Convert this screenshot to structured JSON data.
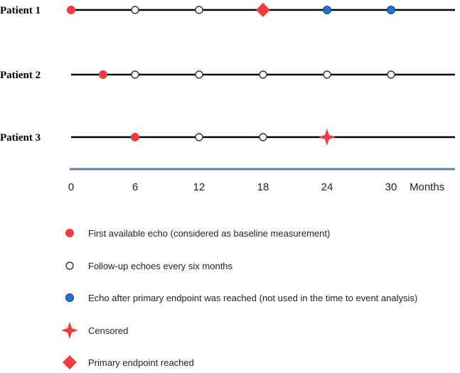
{
  "timeline": {
    "unit_label": "Months",
    "ticks": [
      "0",
      "6",
      "12",
      "18",
      "24",
      "30"
    ],
    "tick_values": [
      0,
      6,
      12,
      18,
      24,
      30
    ],
    "axis_color": "#5b7fa6"
  },
  "patients": [
    {
      "label": "Patient 1",
      "events": [
        {
          "month": 0,
          "type": "first"
        },
        {
          "month": 6,
          "type": "followup"
        },
        {
          "month": 12,
          "type": "followup"
        },
        {
          "month": 18,
          "type": "endpoint"
        },
        {
          "month": 24,
          "type": "after"
        },
        {
          "month": 30,
          "type": "after"
        }
      ]
    },
    {
      "label": "Patient 2",
      "events": [
        {
          "month": 3,
          "type": "first"
        },
        {
          "month": 6,
          "type": "followup"
        },
        {
          "month": 12,
          "type": "followup"
        },
        {
          "month": 18,
          "type": "followup"
        },
        {
          "month": 24,
          "type": "followup"
        },
        {
          "month": 30,
          "type": "followup"
        }
      ]
    },
    {
      "label": "Patient 3",
      "events": [
        {
          "month": 6,
          "type": "first"
        },
        {
          "month": 12,
          "type": "followup"
        },
        {
          "month": 18,
          "type": "followup"
        },
        {
          "month": 24,
          "type": "censored"
        }
      ]
    }
  ],
  "legend": [
    {
      "type": "first",
      "label": "First available echo (considered as baseline measurement)"
    },
    {
      "type": "followup",
      "label": "Follow-up echoes every six months"
    },
    {
      "type": "after",
      "label": "Echo after primary endpoint was reached (not used in the time to event analysis)"
    },
    {
      "type": "censored",
      "label": "Censored"
    },
    {
      "type": "endpoint",
      "label": "Primary endpoint reached"
    }
  ],
  "colors": {
    "first": "#f03c3c",
    "followup": "#ffffff",
    "after": "#1f77d4",
    "censored": "#f03c3c",
    "endpoint": "#f03c3c",
    "line": "#000000"
  },
  "icons": {
    "first": "red-dot-icon",
    "followup": "open-circle-icon",
    "after": "blue-dot-icon",
    "censored": "four-point-star-icon",
    "endpoint": "diamond-icon"
  }
}
